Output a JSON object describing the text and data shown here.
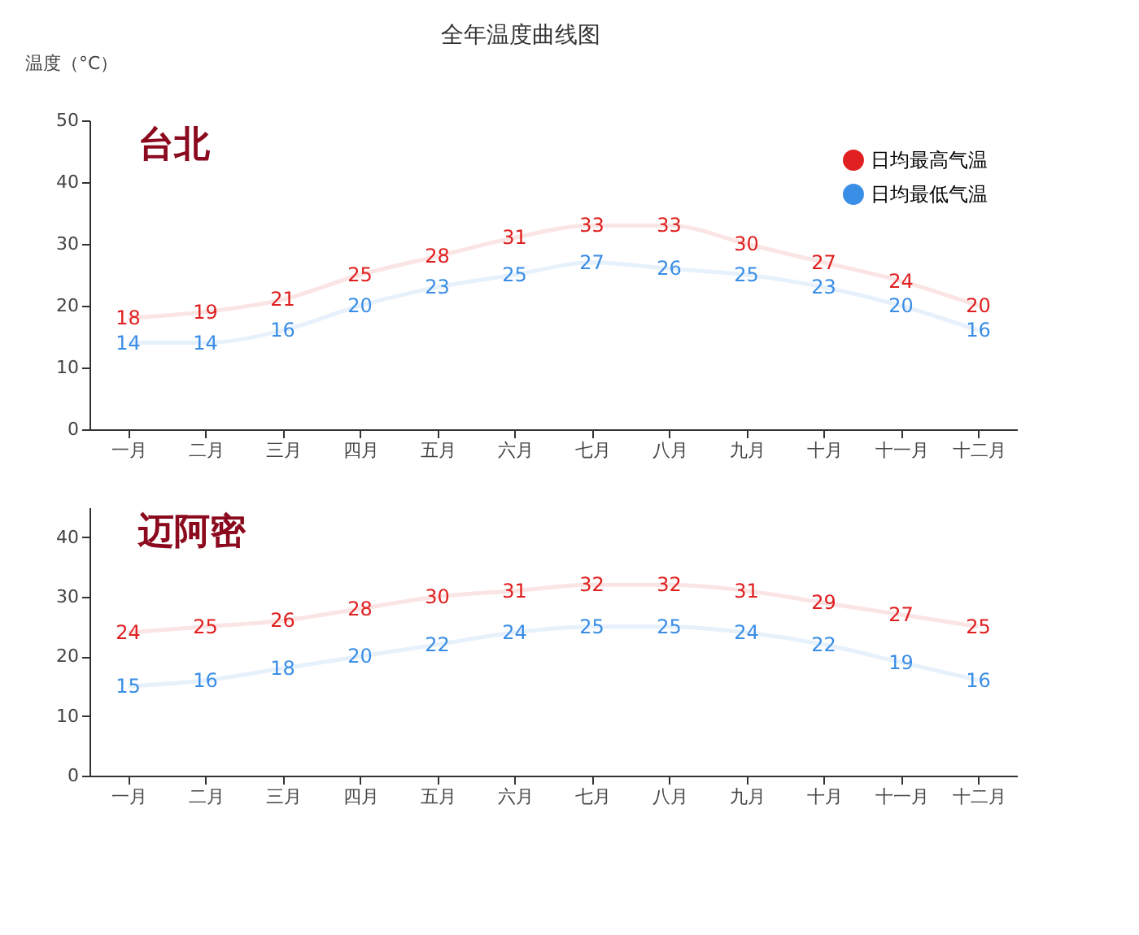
{
  "chart_data": [
    {
      "type": "line",
      "title": "全年温度曲线图",
      "ylabel": "温度（°C）",
      "annotations": [
        "台北"
      ],
      "categories": [
        "一月",
        "二月",
        "三月",
        "四月",
        "五月",
        "六月",
        "七月",
        "八月",
        "九月",
        "十月",
        "十一月",
        "十二月"
      ],
      "series": [
        {
          "name": "日均最高气温",
          "color": "#e02020",
          "values": [
            18,
            19,
            21,
            25,
            28,
            31,
            33,
            33,
            30,
            27,
            24,
            20
          ]
        },
        {
          "name": "日均最低气温",
          "color": "#3a8ee6",
          "values": [
            14,
            14,
            16,
            20,
            23,
            25,
            27,
            26,
            25,
            23,
            20,
            16
          ]
        }
      ],
      "ylim": [
        0,
        50
      ],
      "yticks": [
        0,
        10,
        20,
        30,
        40,
        50
      ],
      "data_labels": true,
      "grid": false,
      "legend": "top right"
    },
    {
      "type": "line",
      "annotations": [
        "迈阿密"
      ],
      "categories": [
        "一月",
        "二月",
        "三月",
        "四月",
        "五月",
        "六月",
        "七月",
        "八月",
        "九月",
        "十月",
        "十一月",
        "十二月"
      ],
      "series": [
        {
          "color": "#e02020",
          "values": [
            24,
            25,
            26,
            28,
            30,
            31,
            32,
            32,
            31,
            29,
            27,
            25
          ]
        },
        {
          "color": "#3a8ee6",
          "values": [
            15,
            16,
            18,
            20,
            22,
            24,
            25,
            25,
            24,
            22,
            19,
            16
          ]
        }
      ],
      "ylim": [
        0,
        45
      ],
      "yticks": [
        0,
        10,
        20,
        30,
        40
      ],
      "data_labels": true,
      "grid": false,
      "legend": false
    }
  ]
}
